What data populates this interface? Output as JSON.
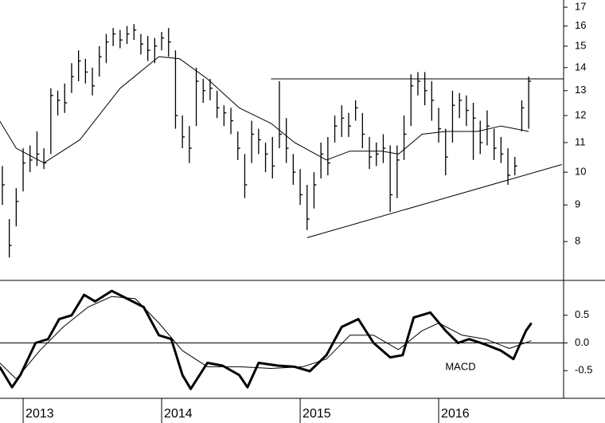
{
  "chart_data": [
    {
      "type": "ohlc",
      "log_scale": true,
      "xlim": [
        2012.833,
        2016.902
      ],
      "ylim": [
        7.06,
        17.4
      ],
      "yticks": [
        8,
        9,
        10,
        11,
        12,
        13,
        14,
        15,
        16,
        17
      ],
      "color": "#000000",
      "bars": {
        "x": [
          2012.85,
          2012.9,
          2012.95,
          2013.0,
          2013.05,
          2013.1,
          2013.15,
          2013.2,
          2013.25,
          2013.3,
          2013.35,
          2013.4,
          2013.45,
          2013.5,
          2013.55,
          2013.6,
          2013.65,
          2013.7,
          2013.75,
          2013.8,
          2013.85,
          2013.9,
          2013.95,
          2014.0,
          2014.05,
          2014.1,
          2014.15,
          2014.2,
          2014.25,
          2014.3,
          2014.35,
          2014.4,
          2014.45,
          2014.5,
          2014.55,
          2014.6,
          2014.65,
          2014.7,
          2014.75,
          2014.8,
          2014.85,
          2014.9,
          2014.95,
          2015.0,
          2015.05,
          2015.1,
          2015.15,
          2015.2,
          2015.25,
          2015.3,
          2015.35,
          2015.4,
          2015.45,
          2015.5,
          2015.55,
          2015.6,
          2015.65,
          2015.7,
          2015.75,
          2015.8,
          2015.85,
          2015.9,
          2015.95,
          2016.0,
          2016.05,
          2016.1,
          2016.15,
          2016.2,
          2016.25,
          2016.3,
          2016.35,
          2016.4,
          2016.45,
          2016.5,
          2016.55,
          2016.6,
          2016.65
        ],
        "high": [
          10.2,
          8.6,
          9.5,
          10.8,
          10.9,
          11.4,
          10.8,
          13.1,
          13.0,
          13.3,
          14.2,
          14.8,
          14.4,
          14.0,
          15.0,
          15.6,
          15.9,
          15.8,
          16.0,
          16.1,
          15.6,
          15.5,
          15.4,
          15.7,
          15.9,
          14.8,
          12.0,
          11.6,
          14.0,
          13.5,
          13.5,
          13.0,
          12.4,
          12.3,
          11.4,
          10.6,
          11.8,
          11.5,
          11.0,
          11.2,
          13.4,
          11.9,
          10.6,
          10.1,
          9.6,
          10.0,
          11.0,
          11.2,
          12.0,
          12.4,
          12.1,
          12.6,
          12.1,
          11.2,
          11.0,
          11.3,
          10.9,
          10.9,
          12.0,
          13.7,
          13.8,
          13.8,
          13.4,
          12.3,
          11.5,
          13.0,
          12.9,
          12.8,
          12.5,
          11.8,
          12.2,
          11.5,
          11.2,
          10.8,
          10.5,
          12.6,
          13.6
        ],
        "low": [
          9.0,
          7.6,
          8.4,
          9.4,
          10.0,
          10.2,
          10.1,
          10.6,
          12.0,
          12.1,
          12.9,
          13.4,
          13.3,
          12.8,
          13.6,
          14.2,
          15.0,
          14.9,
          15.1,
          15.3,
          14.6,
          14.3,
          14.2,
          14.8,
          14.5,
          11.5,
          10.8,
          10.3,
          11.6,
          12.5,
          12.6,
          11.9,
          11.6,
          11.3,
          10.4,
          9.2,
          10.3,
          10.6,
          10.0,
          9.8,
          10.8,
          10.3,
          9.6,
          9.0,
          8.3,
          8.9,
          9.8,
          9.9,
          11.0,
          11.2,
          11.2,
          11.8,
          10.8,
          10.1,
          10.2,
          10.3,
          8.8,
          9.2,
          10.4,
          11.6,
          12.8,
          12.4,
          11.8,
          11.0,
          9.9,
          11.0,
          11.9,
          11.6,
          10.4,
          10.6,
          10.9,
          10.4,
          10.3,
          9.6,
          9.9,
          11.4,
          11.5
        ],
        "close": [
          9.6,
          7.9,
          9.1,
          10.3,
          10.4,
          10.6,
          10.3,
          12.8,
          12.6,
          12.5,
          13.6,
          14.3,
          13.8,
          13.2,
          14.5,
          15.2,
          15.6,
          15.3,
          15.6,
          15.8,
          15.1,
          14.8,
          15.0,
          15.4,
          15.2,
          12.0,
          11.2,
          10.8,
          13.4,
          13.0,
          13.1,
          12.3,
          12.1,
          11.8,
          10.8,
          9.6,
          11.3,
          11.1,
          10.6,
          10.2,
          11.3,
          10.8,
          10.0,
          9.3,
          8.6,
          9.6,
          10.6,
          10.3,
          11.6,
          11.9,
          11.6,
          12.3,
          11.3,
          10.5,
          10.6,
          10.8,
          9.3,
          10.4,
          11.3,
          13.2,
          13.4,
          13.0,
          12.6,
          11.5,
          10.5,
          12.4,
          12.6,
          12.2,
          11.9,
          11.0,
          11.6,
          10.8,
          10.6,
          9.9,
          10.2,
          12.3,
          13.4
        ]
      },
      "series": [
        {
          "color": "#000000",
          "x": [
            2012.83,
            2012.95,
            2013.15,
            2013.41,
            2013.7,
            2013.98,
            2014.13,
            2014.33,
            2014.56,
            2014.79,
            2014.96,
            2015.19,
            2015.36,
            2015.59,
            2015.71,
            2015.88,
            2016.05,
            2016.28,
            2016.45,
            2016.65
          ],
          "values": [
            11.8,
            10.8,
            10.3,
            11.1,
            13.1,
            14.5,
            14.4,
            13.5,
            12.3,
            11.7,
            11.0,
            10.4,
            10.7,
            10.7,
            10.6,
            11.3,
            11.4,
            11.4,
            11.6,
            11.4
          ]
        }
      ],
      "trendlines": [
        {
          "x": [
            2014.79,
            2016.902
          ],
          "values": [
            13.5,
            13.5
          ]
        },
        {
          "x": [
            2015.05,
            2016.89
          ],
          "values": [
            8.1,
            10.25
          ]
        }
      ]
    },
    {
      "type": "line",
      "xlim": [
        2012.833,
        2016.902
      ],
      "ylim": [
        -1.0,
        1.13
      ],
      "yticks": [
        0.5,
        {
          "value": 0,
          "label": "0.0"
        },
        -0.5
      ],
      "xticks": [
        2013,
        2014,
        2015,
        2016
      ],
      "annotation": "MACD",
      "series": [
        {
          "color": "#000000",
          "width": 3,
          "x": [
            2012.83,
            2012.92,
            2012.98,
            2013.09,
            2013.18,
            2013.26,
            2013.35,
            2013.44,
            2013.52,
            2013.64,
            2013.75,
            2013.87,
            2013.98,
            2014.07,
            2014.15,
            2014.21,
            2014.33,
            2014.44,
            2014.56,
            2014.62,
            2014.7,
            2014.84,
            2014.96,
            2015.07,
            2015.19,
            2015.3,
            2015.42,
            2015.53,
            2015.65,
            2015.74,
            2015.82,
            2015.94,
            2016.05,
            2016.14,
            2016.22,
            2016.34,
            2016.45,
            2016.54,
            2016.63,
            2016.67
          ],
          "values": [
            -0.43,
            -0.8,
            -0.58,
            0,
            0.07,
            0.43,
            0.5,
            0.87,
            0.75,
            0.94,
            0.8,
            0.65,
            0.14,
            0.07,
            -0.58,
            -0.83,
            -0.36,
            -0.41,
            -0.58,
            -0.8,
            -0.36,
            -0.41,
            -0.43,
            -0.51,
            -0.22,
            0.29,
            0.43,
            0,
            -0.26,
            -0.22,
            0.46,
            0.55,
            0.22,
            0,
            0.07,
            -0.03,
            -0.14,
            -0.29,
            0.22,
            0.36
          ]
        },
        {
          "color": "#000000",
          "width": 1,
          "x": [
            2012.83,
            2012.95,
            2013.12,
            2013.29,
            2013.47,
            2013.64,
            2013.81,
            2013.98,
            2014.15,
            2014.33,
            2014.56,
            2014.79,
            2015.02,
            2015.19,
            2015.36,
            2015.53,
            2015.71,
            2015.88,
            2016.0,
            2016.17,
            2016.34,
            2016.51,
            2016.67
          ],
          "values": [
            -0.36,
            -0.65,
            -0.14,
            0.29,
            0.65,
            0.84,
            0.8,
            0.36,
            -0.14,
            -0.43,
            -0.43,
            -0.46,
            -0.43,
            -0.29,
            0.14,
            0.14,
            -0.12,
            0.22,
            0.36,
            0.14,
            0.07,
            -0.1,
            0.04
          ]
        }
      ]
    }
  ]
}
